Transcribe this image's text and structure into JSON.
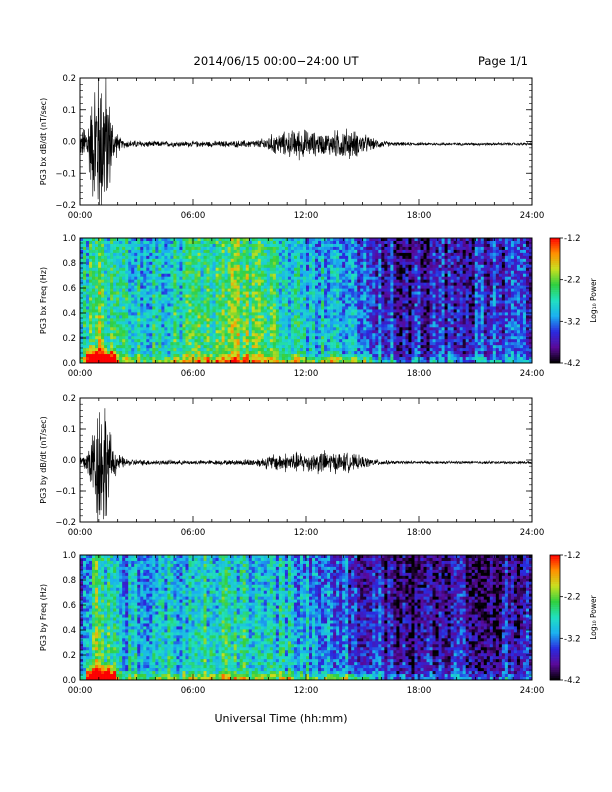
{
  "header": {
    "title": "2014/06/15  00:00−24:00 UT",
    "page": "Page 1/1"
  },
  "footer": {
    "xlabel": "Universal Time (hh:mm)"
  },
  "colorbar": {
    "label": "Log₁₀ Power",
    "ticks": [
      "-1.2",
      "-2.2",
      "-3.2",
      "-4.2"
    ],
    "colors": [
      "#000000",
      "#5a0a9a",
      "#2a2ae0",
      "#1ab0f0",
      "#20e0c0",
      "#30d040",
      "#c8e020",
      "#ff9000",
      "#ff0000"
    ]
  },
  "chart_data": [
    {
      "type": "line",
      "ylabel": "PG3 bx dB/dt (nT/sec)",
      "x_ticks": [
        "00:00",
        "06:00",
        "12:00",
        "18:00",
        "24:00"
      ],
      "y_ticks": [
        "0.2",
        "0.1",
        "0.0",
        "−0.1",
        "−0.2"
      ],
      "xlim_hours": [
        0,
        24
      ],
      "ylim": [
        -0.2,
        0.2
      ],
      "envelope": {
        "hours": [
          0,
          0.3,
          0.6,
          0.8,
          1.0,
          1.2,
          1.4,
          1.6,
          1.8,
          2.2,
          4,
          6,
          8,
          9.5,
          10.3,
          11,
          11.7,
          12.3,
          13,
          13.6,
          14.2,
          15,
          15.6,
          16.5,
          18,
          21,
          24
        ],
        "amplitude": [
          0.03,
          0.06,
          0.12,
          0.22,
          0.25,
          0.25,
          0.2,
          0.12,
          0.05,
          0.012,
          0.008,
          0.008,
          0.009,
          0.012,
          0.03,
          0.035,
          0.045,
          0.035,
          0.03,
          0.04,
          0.045,
          0.03,
          0.015,
          0.006,
          0.004,
          0.004,
          0.004
        ]
      }
    },
    {
      "type": "heatmap",
      "ylabel": "PG3 bx Freq (Hz)",
      "x_ticks": [
        "00:00",
        "06:00",
        "12:00",
        "18:00",
        "24:00"
      ],
      "y_ticks": [
        "1.0",
        "0.8",
        "0.6",
        "0.4",
        "0.2",
        "0.0"
      ],
      "xlim_hours": [
        0,
        24
      ],
      "ylim": [
        0,
        1.0
      ],
      "zlim_log10_power": [
        -4.2,
        -1.2
      ],
      "activity": {
        "hours": [
          0,
          0.6,
          1.0,
          1.5,
          2.5,
          4,
          6.5,
          8.5,
          10,
          11.5,
          13,
          14.5,
          16,
          17,
          18.5,
          20,
          22,
          24
        ],
        "level": [
          0.45,
          0.6,
          0.75,
          0.6,
          0.5,
          0.5,
          0.6,
          0.68,
          0.6,
          0.5,
          0.45,
          0.4,
          0.3,
          0.22,
          0.22,
          0.25,
          0.28,
          0.3
        ]
      }
    },
    {
      "type": "line",
      "ylabel": "PG3 by dB/dt (nT/sec)",
      "x_ticks": [
        "00:00",
        "06:00",
        "12:00",
        "18:00",
        "24:00"
      ],
      "y_ticks": [
        "0.2",
        "0.1",
        "0.0",
        "−0.1",
        "−0.2"
      ],
      "xlim_hours": [
        0,
        24
      ],
      "ylim": [
        -0.2,
        0.2
      ],
      "envelope": {
        "hours": [
          0,
          0.3,
          0.6,
          0.9,
          1.1,
          1.3,
          1.5,
          1.7,
          2.0,
          2.5,
          4,
          6,
          8,
          9.5,
          10.3,
          11,
          11.7,
          12.3,
          12.8,
          13.5,
          14.2,
          15,
          15.6,
          16.5,
          18,
          21,
          24
        ],
        "amplitude": [
          0.02,
          0.03,
          0.08,
          0.18,
          0.21,
          0.2,
          0.12,
          0.06,
          0.025,
          0.01,
          0.007,
          0.006,
          0.007,
          0.012,
          0.025,
          0.028,
          0.03,
          0.028,
          0.035,
          0.03,
          0.028,
          0.018,
          0.01,
          0.005,
          0.004,
          0.004,
          0.004
        ]
      }
    },
    {
      "type": "heatmap",
      "ylabel": "PG3 by Freq (Hz)",
      "x_ticks": [
        "00:00",
        "06:00",
        "12:00",
        "18:00",
        "24:00"
      ],
      "y_ticks": [
        "1.0",
        "0.8",
        "0.6",
        "0.4",
        "0.2",
        "0.0"
      ],
      "xlim_hours": [
        0,
        24
      ],
      "ylim": [
        0,
        1.0
      ],
      "zlim_log10_power": [
        -4.2,
        -1.2
      ],
      "activity": {
        "hours": [
          0,
          0.6,
          1.0,
          1.5,
          2.5,
          4,
          6.5,
          8.5,
          10,
          11.5,
          13,
          14.5,
          16,
          17,
          18.5,
          20,
          22,
          24
        ],
        "level": [
          0.4,
          0.55,
          0.7,
          0.55,
          0.45,
          0.45,
          0.52,
          0.55,
          0.52,
          0.45,
          0.38,
          0.32,
          0.22,
          0.15,
          0.14,
          0.18,
          0.2,
          0.22
        ]
      }
    }
  ]
}
